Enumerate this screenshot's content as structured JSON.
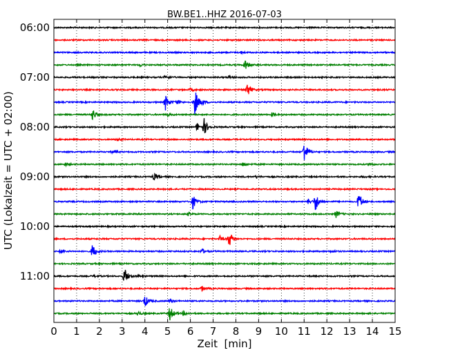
{
  "chart_data": {
    "type": "line",
    "title": "BW.BE1..HHZ 2016-07-03",
    "xlabel": "Zeit  [min]",
    "ylabel": "UTC (Lokalzeit = UTC + 02:00)",
    "xlim": [
      0,
      15
    ],
    "x_ticks": [
      "0",
      "1",
      "2",
      "3",
      "4",
      "5",
      "6",
      "7",
      "8",
      "9",
      "10",
      "11",
      "12",
      "13",
      "14",
      "15"
    ],
    "y_tick_labels": [
      "06:00",
      "07:00",
      "08:00",
      "09:00",
      "10:00",
      "11:00"
    ],
    "y_tick_rows": [
      0,
      4,
      8,
      12,
      16,
      20
    ],
    "grid": {
      "x": "dotted"
    },
    "trace_colors": [
      "#000000",
      "#ff0000",
      "#0000ff",
      "#008000"
    ],
    "trace_interval_minutes": 15,
    "series": [
      {
        "row": 0,
        "events": []
      },
      {
        "row": 1,
        "events": []
      },
      {
        "row": 2,
        "events": [
          [
            8.2,
            2
          ]
        ]
      },
      {
        "row": 3,
        "events": [
          [
            8.4,
            8
          ],
          [
            3.8,
            2
          ]
        ]
      },
      {
        "row": 4,
        "events": [
          [
            4.9,
            3
          ],
          [
            7.7,
            2
          ]
        ]
      },
      {
        "row": 5,
        "events": [
          [
            8.5,
            10
          ],
          [
            6.0,
            2
          ]
        ]
      },
      {
        "row": 6,
        "events": [
          [
            4.9,
            12
          ],
          [
            6.2,
            20
          ],
          [
            5.4,
            3
          ],
          [
            6.5,
            3
          ]
        ]
      },
      {
        "row": 7,
        "events": [
          [
            1.7,
            9
          ],
          [
            9.6,
            3
          ],
          [
            5.0,
            2
          ]
        ]
      },
      {
        "row": 8,
        "events": [
          [
            6.6,
            12
          ],
          [
            6.3,
            6
          ]
        ]
      },
      {
        "row": 9,
        "events": [
          [
            2.8,
            2
          ]
        ]
      },
      {
        "row": 10,
        "events": [
          [
            11.0,
            16
          ],
          [
            2.6,
            2
          ]
        ]
      },
      {
        "row": 11,
        "events": [
          [
            8.3,
            3
          ],
          [
            13.9,
            2
          ],
          [
            0.5,
            2
          ]
        ]
      },
      {
        "row": 12,
        "events": [
          [
            4.4,
            5
          ],
          [
            8.9,
            2
          ],
          [
            13.6,
            1
          ]
        ]
      },
      {
        "row": 13,
        "events": []
      },
      {
        "row": 14,
        "events": [
          [
            6.1,
            11
          ],
          [
            11.5,
            14
          ],
          [
            13.4,
            15
          ],
          [
            11.2,
            4
          ]
        ]
      },
      {
        "row": 15,
        "events": [
          [
            12.4,
            5
          ],
          [
            5.9,
            2
          ]
        ]
      },
      {
        "row": 16,
        "events": []
      },
      {
        "row": 17,
        "events": [
          [
            7.7,
            12
          ],
          [
            7.3,
            4
          ]
        ]
      },
      {
        "row": 18,
        "events": [
          [
            1.7,
            11
          ],
          [
            6.5,
            4
          ],
          [
            12.2,
            2
          ],
          [
            0.3,
            2
          ]
        ]
      },
      {
        "row": 19,
        "events": []
      },
      {
        "row": 20,
        "events": [
          [
            3.1,
            13
          ],
          [
            1.8,
            2
          ],
          [
            3.7,
            2
          ]
        ]
      },
      {
        "row": 21,
        "events": [
          [
            6.5,
            4
          ]
        ]
      },
      {
        "row": 22,
        "events": [
          [
            4.0,
            9
          ],
          [
            5.1,
            2
          ]
        ]
      },
      {
        "row": 23,
        "events": [
          [
            5.1,
            11
          ],
          [
            3.7,
            3
          ],
          [
            5.7,
            3
          ]
        ]
      }
    ]
  }
}
